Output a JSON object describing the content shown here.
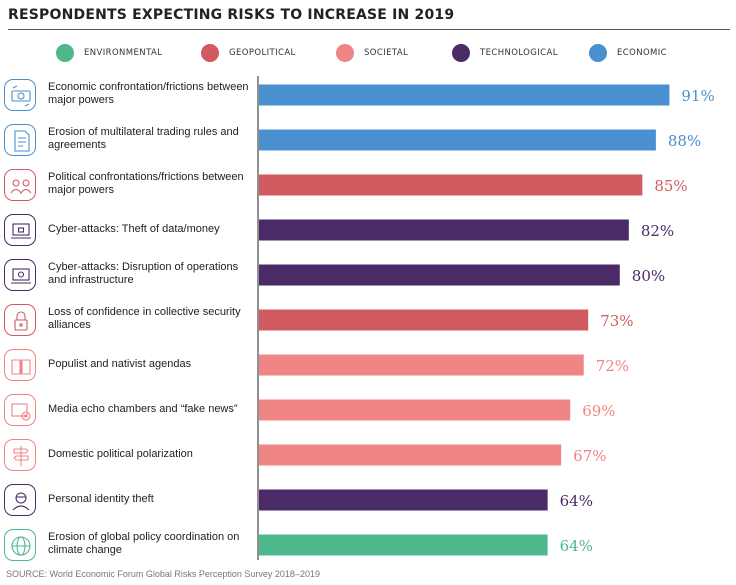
{
  "title": "RESPONDENTS EXPECTING RISKS TO INCREASE IN 2019",
  "source": "SOURCE: World Economic Forum Global Risks Perception Survey 2018–2019",
  "legend": [
    {
      "label": "ENVIRONMENTAL",
      "color": "#4fb78c"
    },
    {
      "label": "GEOPOLITICAL",
      "color": "#d05a60"
    },
    {
      "label": "SOCIETAL",
      "color": "#ef8585"
    },
    {
      "label": "TECHNOLOGICAL",
      "color": "#4a2b68"
    },
    {
      "label": "ECONOMIC",
      "color": "#4a8fd0"
    }
  ],
  "chart_data": {
    "type": "bar",
    "orientation": "horizontal",
    "xlim": [
      0,
      100
    ],
    "value_suffix": "%",
    "categories": [
      "Economic confrontation/frictions between major powers",
      "Erosion of multilateral trading rules and agreements",
      "Political confrontations/frictions between major powers",
      "Cyber-attacks: Theft of data/money",
      "Cyber-attacks: Disruption of operations and infrastructure",
      "Loss of confidence in collective security alliances",
      "Populist and nativist agendas",
      "Media echo chambers and “fake news”",
      "Domestic political polarization",
      "Personal identity theft",
      "Erosion of global policy coordination on climate change"
    ],
    "values": [
      91,
      88,
      85,
      82,
      80,
      73,
      72,
      69,
      67,
      64,
      64
    ],
    "value_labels": [
      "91%",
      "88%",
      "85%",
      "82%",
      "80%",
      "73%",
      "72%",
      "69%",
      "67%",
      "64%",
      "64%"
    ],
    "risk_type": [
      "economic",
      "economic",
      "geopolitical",
      "technological",
      "technological",
      "geopolitical",
      "societal",
      "societal",
      "societal",
      "technological",
      "environmental"
    ],
    "icons": [
      "money-exchange-icon",
      "document-icon",
      "people-group-icon",
      "laptop-lock-icon",
      "laptop-network-icon",
      "padlock-icon",
      "book-icon",
      "screen-cross-icon",
      "signpost-icon",
      "anonymous-person-icon",
      "globe-icon"
    ]
  },
  "colors": {
    "environmental": "#4fb78c",
    "geopolitical": "#d05a60",
    "societal": "#ef8585",
    "technological": "#4a2b68",
    "economic": "#4a8fd0"
  }
}
